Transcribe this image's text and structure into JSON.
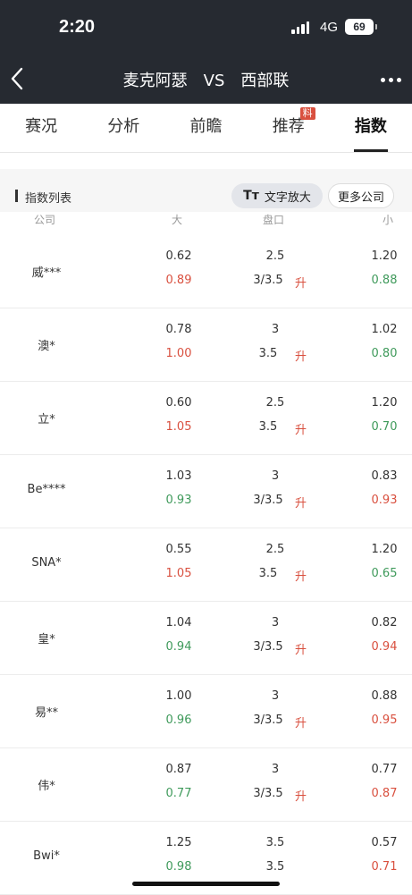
{
  "status": {
    "time": "2:20",
    "network": "4G",
    "battery": "69"
  },
  "header": {
    "home": "麦克阿瑟",
    "vs": "VS",
    "away": "西部联"
  },
  "tabs": [
    {
      "label": "赛况"
    },
    {
      "label": "分析"
    },
    {
      "label": "前瞻"
    },
    {
      "label": "推荐",
      "badge": "料"
    },
    {
      "label": "指数",
      "active": true
    }
  ],
  "section": {
    "title": "指数列表",
    "zoom_label": "文字放大",
    "zoom_icon": "Tт",
    "more_label": "更多公司"
  },
  "columns": {
    "company": "公司",
    "big": "大",
    "handicap": "盘口",
    "small": "小"
  },
  "colors": {
    "up": "#d9503f",
    "down": "#3f9a5b"
  },
  "rows": [
    {
      "company": "威***",
      "big1": "0.62",
      "big2": "0.89",
      "big2c": "red",
      "pk1": "2.5",
      "pk2": "3/3.5",
      "up": "升",
      "small1": "1.20",
      "small2": "0.88",
      "small2c": "green"
    },
    {
      "company": "澳*",
      "big1": "0.78",
      "big2": "1.00",
      "big2c": "red",
      "pk1": "3",
      "pk2": "3.5",
      "up": "升",
      "small1": "1.02",
      "small2": "0.80",
      "small2c": "green"
    },
    {
      "company": "立*",
      "big1": "0.60",
      "big2": "1.05",
      "big2c": "red",
      "pk1": "2.5",
      "pk2": "3.5",
      "up": "升",
      "small1": "1.20",
      "small2": "0.70",
      "small2c": "green"
    },
    {
      "company": "Be****",
      "big1": "1.03",
      "big2": "0.93",
      "big2c": "green",
      "pk1": "3",
      "pk2": "3/3.5",
      "up": "升",
      "small1": "0.83",
      "small2": "0.93",
      "small2c": "red"
    },
    {
      "company": "SNA*",
      "big1": "0.55",
      "big2": "1.05",
      "big2c": "red",
      "pk1": "2.5",
      "pk2": "3.5",
      "up": "升",
      "small1": "1.20",
      "small2": "0.65",
      "small2c": "green"
    },
    {
      "company": "皇*",
      "big1": "1.04",
      "big2": "0.94",
      "big2c": "green",
      "pk1": "3",
      "pk2": "3/3.5",
      "up": "升",
      "small1": "0.82",
      "small2": "0.94",
      "small2c": "red"
    },
    {
      "company": "易**",
      "big1": "1.00",
      "big2": "0.96",
      "big2c": "green",
      "pk1": "3",
      "pk2": "3/3.5",
      "up": "升",
      "small1": "0.88",
      "small2": "0.95",
      "small2c": "red"
    },
    {
      "company": "伟*",
      "big1": "0.87",
      "big2": "0.77",
      "big2c": "green",
      "pk1": "3",
      "pk2": "3/3.5",
      "up": "升",
      "small1": "0.77",
      "small2": "0.87",
      "small2c": "red"
    },
    {
      "company": "Bwi*",
      "big1": "1.25",
      "big2": "0.98",
      "big2c": "green",
      "pk1": "3.5",
      "pk2": "3.5",
      "up": "",
      "small1": "0.57",
      "small2": "0.71",
      "small2c": "red"
    }
  ]
}
